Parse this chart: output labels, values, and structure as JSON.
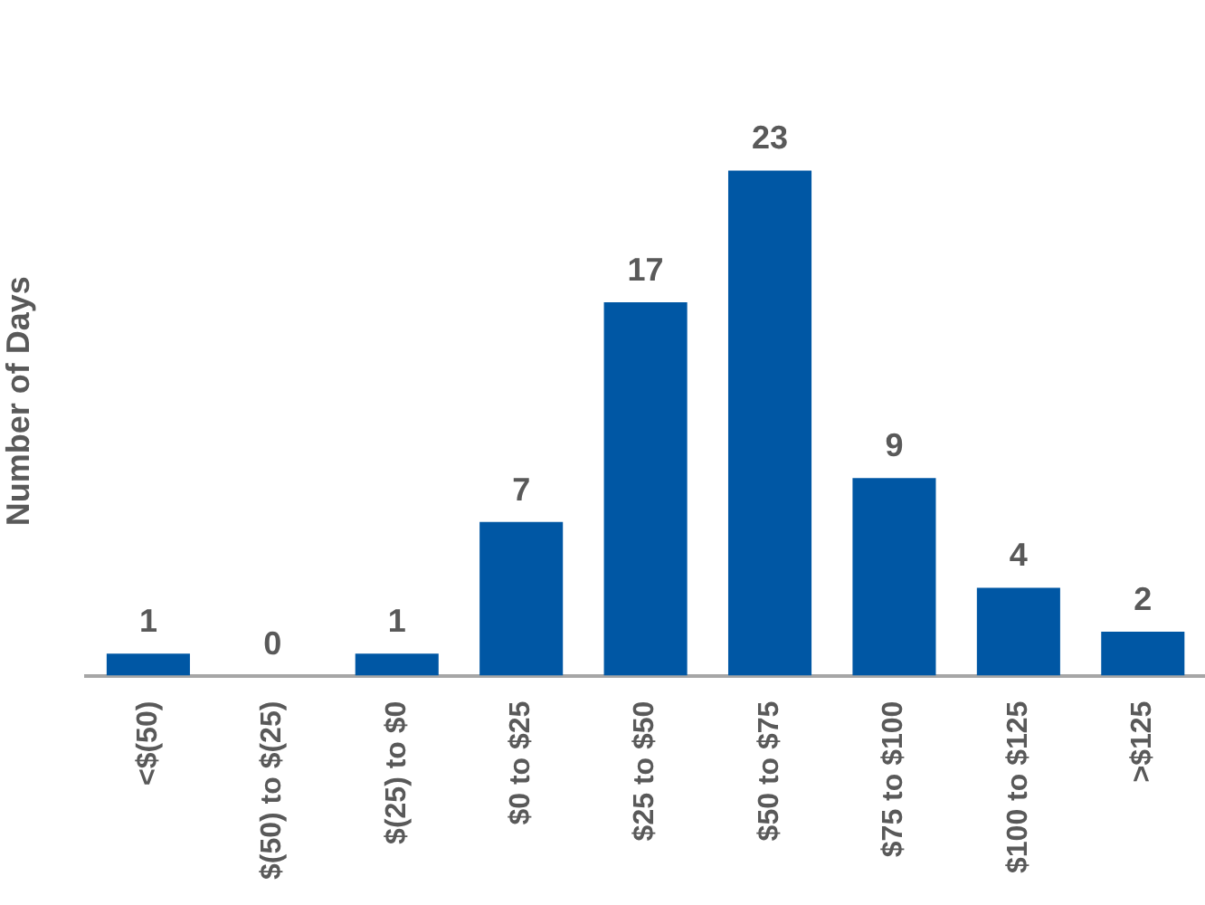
{
  "chart_data": {
    "type": "bar",
    "ylabel": "Number of Days",
    "categories": [
      "<$(50)",
      "$(50) to $(25)",
      "$(25) to $0",
      "$0 to $25",
      "$25 to $50",
      "$50 to $75",
      "$75 to $100",
      "$100 to $125",
      ">$125"
    ],
    "values": [
      1,
      0,
      1,
      7,
      17,
      23,
      9,
      4,
      2
    ],
    "color": "#0057a4",
    "data_labels": true,
    "grid": false,
    "legend": false,
    "tick_labels": "x"
  }
}
